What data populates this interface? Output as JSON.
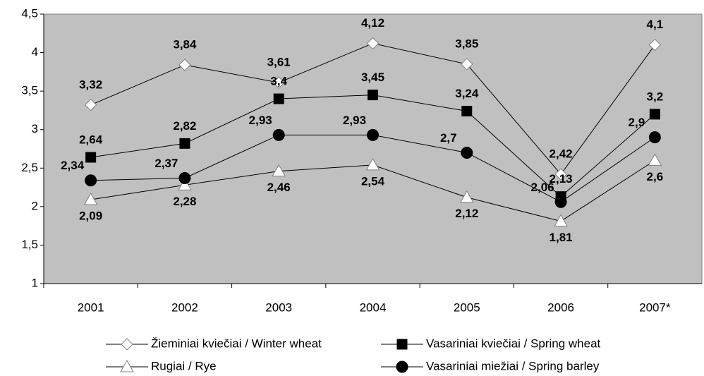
{
  "chart_data": {
    "type": "line",
    "categories": [
      "2001",
      "2002",
      "2003",
      "2004",
      "2005",
      "2006",
      "2007*"
    ],
    "series": [
      {
        "name": "Žieminiai kviečiai / Winter wheat",
        "color": "#000000",
        "marker": "diamond",
        "marker_color": "#ffffff",
        "values": [
          3.32,
          3.84,
          3.61,
          4.12,
          3.85,
          2.42,
          4.1
        ],
        "value_labels": [
          "3,32",
          "3,84",
          "3,61",
          "4,12",
          "3,85",
          "2,42",
          "4,1"
        ]
      },
      {
        "name": "Vasariniai kviečiai / Spring wheat",
        "color": "#000000",
        "marker": "square",
        "marker_color": "#000000",
        "values": [
          2.64,
          2.82,
          3.4,
          3.45,
          3.24,
          2.13,
          3.2
        ],
        "value_labels": [
          "2,64",
          "2,82",
          "3,4",
          "3,45",
          "3,24",
          "2,13",
          "3,2"
        ]
      },
      {
        "name": "Rugiai / Rye",
        "color": "#000000",
        "marker": "triangle",
        "marker_color": "#ffffff",
        "values": [
          2.09,
          2.28,
          2.46,
          2.54,
          2.12,
          1.81,
          2.6
        ],
        "value_labels": [
          "2,09",
          "2,28",
          "2,46",
          "2,54",
          "2,12",
          "1,81",
          "2,6"
        ]
      },
      {
        "name": "Vasariniai miežiai / Spring barley",
        "color": "#000000",
        "marker": "circle",
        "marker_color": "#000000",
        "values": [
          2.34,
          2.37,
          2.93,
          2.93,
          2.7,
          2.06,
          2.9
        ],
        "value_labels": [
          "2,34",
          "2,37",
          "2,93",
          "2,93",
          "2,7",
          "2,06",
          "2,9"
        ]
      }
    ],
    "ylim": [
      1,
      4.5
    ],
    "yticks": [
      1,
      {
        "value": 1.5,
        "label": "1,5"
      },
      2,
      {
        "value": 2.5,
        "label": "2,5"
      },
      3,
      {
        "value": 3.5,
        "label": "3,5"
      },
      4,
      {
        "value": 4.5,
        "label": "4,5"
      }
    ],
    "plot_background": "#c0c0c0",
    "legend": "bottom"
  }
}
